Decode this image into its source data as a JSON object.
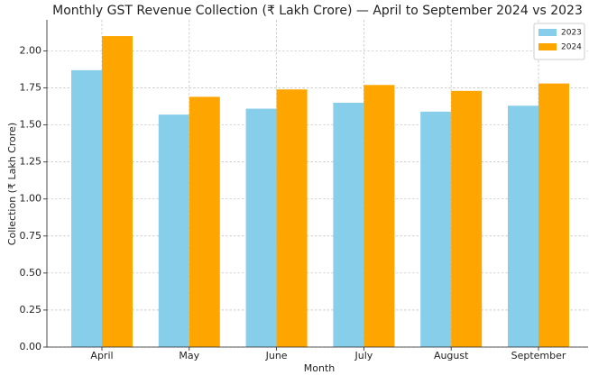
{
  "chart_data": {
    "type": "bar",
    "title": "Monthly GST Revenue Collection (₹ Lakh Crore) — April to September 2024 vs 2023",
    "xlabel": "Month",
    "ylabel": "Collection (₹ Lakh Crore)",
    "categories": [
      "April",
      "May",
      "June",
      "July",
      "August",
      "September"
    ],
    "series": [
      {
        "name": "2023",
        "color": "#87ceeb",
        "values": [
          1.87,
          1.57,
          1.61,
          1.65,
          1.59,
          1.63
        ]
      },
      {
        "name": "2024",
        "color": "#ffa500",
        "values": [
          2.1,
          1.69,
          1.74,
          1.77,
          1.73,
          1.78
        ]
      }
    ],
    "ylim": [
      0,
      2.21
    ],
    "yticks": [
      {
        "value": 0,
        "label": "0.00"
      },
      {
        "value": 0.25,
        "label": "0.25"
      },
      {
        "value": 0.5,
        "label": "0.50"
      },
      {
        "value": 0.75,
        "label": "0.75"
      },
      {
        "value": 1,
        "label": "1.00"
      },
      {
        "value": 1.25,
        "label": "1.25"
      },
      {
        "value": 1.5,
        "label": "1.50"
      },
      {
        "value": 1.75,
        "label": "1.75"
      },
      {
        "value": 2,
        "label": "2.00"
      }
    ],
    "grid": true,
    "legend": "upper right"
  }
}
